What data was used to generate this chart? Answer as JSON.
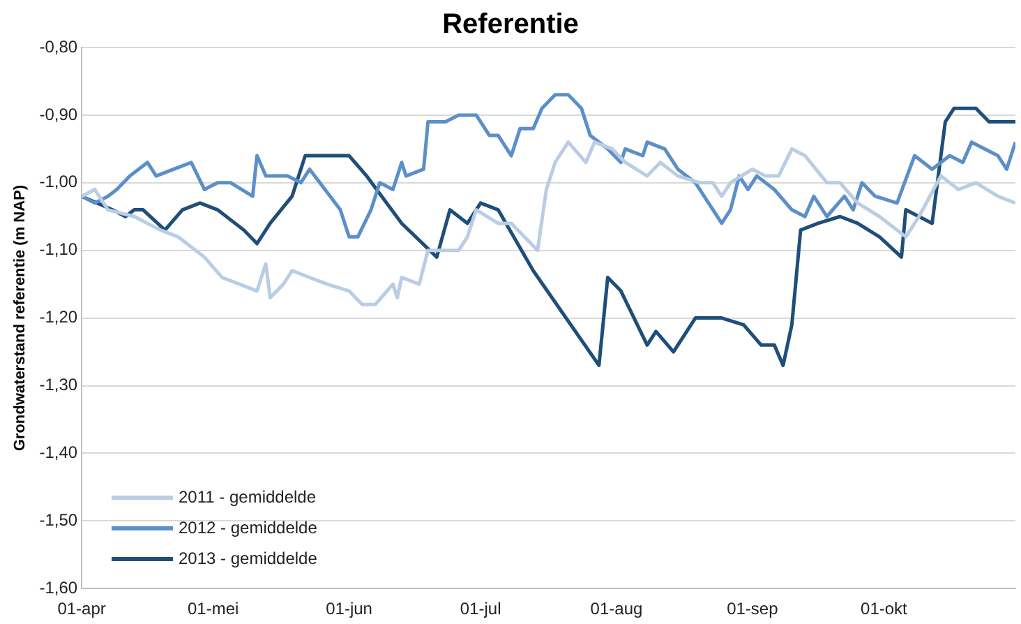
{
  "chart_data": {
    "type": "line",
    "title": "Referentie",
    "ylabel": "Grondwaterstand referentie (m NAP)",
    "xlim": [
      "--04-01",
      "--10-31"
    ],
    "xticks": [
      {
        "value": "--04-01",
        "label": "01-apr"
      },
      {
        "value": "--05-01",
        "label": "01-mei"
      },
      {
        "value": "--06-01",
        "label": "01-jun"
      },
      {
        "value": "--07-01",
        "label": "01-jul"
      },
      {
        "value": "--08-01",
        "label": "01-aug"
      },
      {
        "value": "--09-01",
        "label": "01-sep"
      },
      {
        "value": "--10-01",
        "label": "01-okt"
      }
    ],
    "ylim": [
      -1.6,
      -0.8
    ],
    "yticks": [
      {
        "value": -1.6,
        "label": "-1,60"
      },
      {
        "value": -1.5,
        "label": "-1,50"
      },
      {
        "value": -1.4,
        "label": "-1,40"
      },
      {
        "value": -1.3,
        "label": "-1,30"
      },
      {
        "value": -1.2,
        "label": "-1,20"
      },
      {
        "value": -1.1,
        "label": "-1,10"
      },
      {
        "value": -1.0,
        "label": "-1,00"
      },
      {
        "value": -0.9,
        "label": "-0,90"
      },
      {
        "value": -0.8,
        "label": "-0,80"
      }
    ],
    "grid": "y",
    "legend": "bottom left",
    "marker": "none",
    "line_style": "solid",
    "series": [
      {
        "name": "2011 - gemiddelde",
        "color": "#b9cde4",
        "x": [
          "--04-01",
          "--04-04",
          "--04-07",
          "--04-13",
          "--04-19",
          "--04-23",
          "--04-29",
          "--05-03",
          "--05-07",
          "--05-11",
          "--05-13",
          "--05-14",
          "--05-17",
          "--05-19",
          "--05-23",
          "--05-27",
          "--06-01",
          "--06-04",
          "--06-07",
          "--06-11",
          "--06-12",
          "--06-13",
          "--06-17",
          "--06-19",
          "--06-22",
          "--06-26",
          "--06-28",
          "--06-30",
          "--07-05",
          "--07-08",
          "--07-14",
          "--07-16",
          "--07-18",
          "--07-21",
          "--07-25",
          "--07-27",
          "--07-31",
          "--08-03",
          "--08-08",
          "--08-11",
          "--08-15",
          "--08-20",
          "--08-23",
          "--08-25",
          "--08-27",
          "--09-01",
          "--09-04",
          "--09-07",
          "--09-10",
          "--09-13",
          "--09-18",
          "--09-21",
          "--09-25",
          "--09-30",
          "--10-06",
          "--10-09",
          "--10-14",
          "--10-18",
          "--10-22",
          "--10-27",
          "--10-31"
        ],
        "values": [
          -1.02,
          -1.01,
          -1.04,
          -1.05,
          -1.07,
          -1.08,
          -1.11,
          -1.14,
          -1.15,
          -1.16,
          -1.12,
          -1.17,
          -1.15,
          -1.13,
          -1.14,
          -1.15,
          -1.16,
          -1.18,
          -1.18,
          -1.15,
          -1.17,
          -1.14,
          -1.15,
          -1.1,
          -1.1,
          -1.1,
          -1.08,
          -1.04,
          -1.06,
          -1.06,
          -1.1,
          -1.01,
          -0.97,
          -0.94,
          -0.97,
          -0.94,
          -0.95,
          -0.97,
          -0.99,
          -0.97,
          -0.99,
          -1.0,
          -1.0,
          -1.02,
          -1.0,
          -0.98,
          -0.99,
          -0.99,
          -0.95,
          -0.96,
          -1.0,
          -1.0,
          -1.03,
          -1.05,
          -1.08,
          -1.05,
          -0.99,
          -1.01,
          -1.0,
          -1.02,
          -1.03
        ]
      },
      {
        "name": "2012 - gemiddelde",
        "color": "#5b8fc9",
        "x": [
          "--04-01",
          "--04-04",
          "--04-07",
          "--04-09",
          "--04-12",
          "--04-16",
          "--04-18",
          "--04-22",
          "--04-26",
          "--04-29",
          "--05-02",
          "--05-05",
          "--05-10",
          "--05-11",
          "--05-13",
          "--05-18",
          "--05-21",
          "--05-23",
          "--05-30",
          "--06-01",
          "--06-03",
          "--06-06",
          "--06-08",
          "--06-11",
          "--06-13",
          "--06-14",
          "--06-18",
          "--06-19",
          "--06-23",
          "--06-26",
          "--06-30",
          "--07-03",
          "--07-05",
          "--07-08",
          "--07-10",
          "--07-13",
          "--07-15",
          "--07-18",
          "--07-21",
          "--07-24",
          "--07-26",
          "--07-30",
          "--08-02",
          "--08-03",
          "--08-07",
          "--08-08",
          "--08-12",
          "--08-15",
          "--08-19",
          "--08-22",
          "--08-25",
          "--08-27",
          "--08-29",
          "--08-31",
          "--09-02",
          "--09-06",
          "--09-10",
          "--09-13",
          "--09-15",
          "--09-18",
          "--09-22",
          "--09-24",
          "--09-26",
          "--09-29",
          "--10-04",
          "--10-08",
          "--10-12",
          "--10-16",
          "--10-19",
          "--10-21",
          "--10-27",
          "--10-29",
          "--10-31"
        ],
        "values": [
          -1.02,
          -1.03,
          -1.02,
          -1.01,
          -0.99,
          -0.97,
          -0.99,
          -0.98,
          -0.97,
          -1.01,
          -1.0,
          -1.0,
          -1.02,
          -0.96,
          -0.99,
          -0.99,
          -1.0,
          -0.98,
          -1.04,
          -1.08,
          -1.08,
          -1.04,
          -1.0,
          -1.01,
          -0.97,
          -0.99,
          -0.98,
          -0.91,
          -0.91,
          -0.9,
          -0.9,
          -0.93,
          -0.93,
          -0.96,
          -0.92,
          -0.92,
          -0.89,
          -0.87,
          -0.87,
          -0.89,
          -0.93,
          -0.95,
          -0.97,
          -0.95,
          -0.96,
          -0.94,
          -0.95,
          -0.98,
          -1.0,
          -1.03,
          -1.06,
          -1.04,
          -0.99,
          -1.01,
          -0.99,
          -1.01,
          -1.04,
          -1.05,
          -1.02,
          -1.05,
          -1.02,
          -1.04,
          -1.0,
          -1.02,
          -1.03,
          -0.96,
          -0.98,
          -0.96,
          -0.97,
          -0.94,
          -0.96,
          -0.98,
          -0.94
        ]
      },
      {
        "name": "2013 - gemiddelde",
        "color": "#1f4e79",
        "x": [
          "--04-01",
          "--04-08",
          "--04-11",
          "--04-13",
          "--04-15",
          "--04-20",
          "--04-24",
          "--04-28",
          "--05-02",
          "--05-08",
          "--05-11",
          "--05-14",
          "--05-19",
          "--05-22",
          "--05-27",
          "--06-01",
          "--06-05",
          "--06-13",
          "--06-21",
          "--06-24",
          "--06-28",
          "--07-01",
          "--07-05",
          "--07-13",
          "--07-28",
          "--07-30",
          "--08-02",
          "--08-08",
          "--08-10",
          "--08-14",
          "--08-19",
          "--08-25",
          "--08-30",
          "--09-03",
          "--09-06",
          "--09-08",
          "--09-10",
          "--09-12",
          "--09-16",
          "--09-21",
          "--09-25",
          "--09-30",
          "--10-05",
          "--10-06",
          "--10-12",
          "--10-15",
          "--10-17",
          "--10-22",
          "--10-25",
          "--10-31"
        ],
        "values": [
          -1.02,
          -1.04,
          -1.05,
          -1.04,
          -1.04,
          -1.07,
          -1.04,
          -1.03,
          -1.04,
          -1.07,
          -1.09,
          -1.06,
          -1.02,
          -0.96,
          -0.96,
          -0.96,
          -0.99,
          -1.06,
          -1.11,
          -1.04,
          -1.06,
          -1.03,
          -1.04,
          -1.13,
          -1.27,
          -1.14,
          -1.16,
          -1.24,
          -1.22,
          -1.25,
          -1.2,
          -1.2,
          -1.21,
          -1.24,
          -1.24,
          -1.27,
          -1.21,
          -1.07,
          -1.06,
          -1.05,
          -1.06,
          -1.08,
          -1.11,
          -1.04,
          -1.06,
          -0.91,
          -0.89,
          -0.89,
          -0.91,
          -0.91
        ]
      }
    ]
  }
}
